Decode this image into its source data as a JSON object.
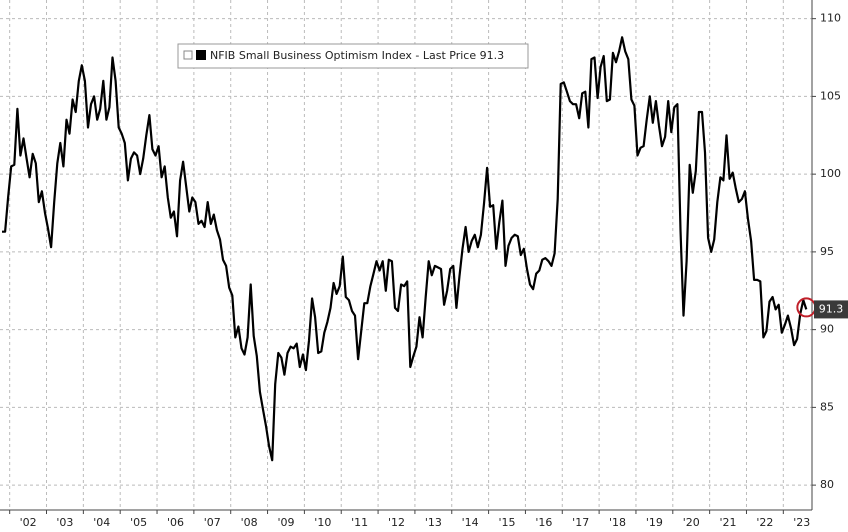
{
  "chart_data": {
    "type": "line",
    "categories": [
      null,
      null,
      null,
      "'02",
      null,
      null,
      null,
      null,
      null,
      null,
      null,
      null,
      null,
      null,
      null,
      "'03",
      null,
      null,
      null,
      null,
      null,
      null,
      null,
      null,
      null,
      null,
      null,
      "'04",
      null,
      null,
      null,
      null,
      null,
      null,
      null,
      null,
      null,
      null,
      null,
      "'05",
      null,
      null,
      null,
      null,
      null,
      null,
      null,
      null,
      null,
      null,
      null,
      "'06",
      null,
      null,
      null,
      null,
      null,
      null,
      null,
      null,
      null,
      null,
      null,
      "'07",
      null,
      null,
      null,
      null,
      null,
      null,
      null,
      null,
      null,
      null,
      null,
      "'08",
      null,
      null,
      null,
      null,
      null,
      null,
      null,
      null,
      null,
      null,
      null,
      "'09",
      null,
      null,
      null,
      null,
      null,
      null,
      null,
      null,
      null,
      null,
      null,
      "'10",
      null,
      null,
      null,
      null,
      null,
      null,
      null,
      null,
      null,
      null,
      null,
      "'11",
      null,
      null,
      null,
      null,
      null,
      null,
      null,
      null,
      null,
      null,
      null,
      "'12",
      null,
      null,
      null,
      null,
      null,
      null,
      null,
      null,
      null,
      null,
      null,
      "'13",
      null,
      null,
      null,
      null,
      null,
      null,
      null,
      null,
      null,
      null,
      null,
      "'14",
      null,
      null,
      null,
      null,
      null,
      null,
      null,
      null,
      null,
      null,
      null,
      "'15",
      null,
      null,
      null,
      null,
      null,
      null,
      null,
      null,
      null,
      null,
      null,
      "'16",
      null,
      null,
      null,
      null,
      null,
      null,
      null,
      null,
      null,
      null,
      null,
      "'17",
      null,
      null,
      null,
      null,
      null,
      null,
      null,
      null,
      null,
      null,
      null,
      "'18",
      null,
      null,
      null,
      null,
      null,
      null,
      null,
      null,
      null,
      null,
      null,
      "'19",
      null,
      null,
      null,
      null,
      null,
      null,
      null,
      null,
      null,
      null,
      null,
      "'20",
      null,
      null,
      null,
      null,
      null,
      null,
      null,
      null,
      null,
      null,
      null,
      "'21",
      null,
      null,
      null,
      null,
      null,
      null,
      null,
      null,
      null,
      null,
      null,
      "'22",
      null,
      null,
      null,
      null,
      null,
      null,
      null,
      null,
      null,
      null,
      null,
      "'23",
      null,
      null,
      null,
      null,
      null,
      null,
      null
    ],
    "series": [
      {
        "name": "NFIB Small Business Optimism Index - Last Price 91.3",
        "color": "#000000",
        "values": [
          96.3,
          96.3,
          98.5,
          100.5,
          100.6,
          104.2,
          101.2,
          102.3,
          101.0,
          99.8,
          101.3,
          100.7,
          98.2,
          98.9,
          97.5,
          96.5,
          95.3,
          98.2,
          100.7,
          102.0,
          100.5,
          103.5,
          102.6,
          104.8,
          104.0,
          106.0,
          107.0,
          106.0,
          103.0,
          104.5,
          105.0,
          103.5,
          104.2,
          106.0,
          103.5,
          104.3,
          107.5,
          106.0,
          103.0,
          102.6,
          102.0,
          99.6,
          101.0,
          101.4,
          101.2,
          100.0,
          101.0,
          102.5,
          103.8,
          101.6,
          101.2,
          101.8,
          99.8,
          100.5,
          98.5,
          97.2,
          97.6,
          96.0,
          99.6,
          100.8,
          99.2,
          97.6,
          98.5,
          98.2,
          96.8,
          97.0,
          96.6,
          98.2,
          96.8,
          97.4,
          96.4,
          95.8,
          94.5,
          94.1,
          92.7,
          92.2,
          89.5,
          90.2,
          88.8,
          88.4,
          89.5,
          92.9,
          89.6,
          88.3,
          86.0,
          84.9,
          83.8,
          82.5,
          81.6,
          86.5,
          88.5,
          88.2,
          87.1,
          88.5,
          88.9,
          88.8,
          89.1,
          87.6,
          88.4,
          87.4,
          89.3,
          92.0,
          90.8,
          88.5,
          88.6,
          89.8,
          90.5,
          91.4,
          93.0,
          92.3,
          92.8,
          94.7,
          92.1,
          91.9,
          91.2,
          90.9,
          88.1,
          89.9,
          91.7,
          91.7,
          92.8,
          93.6,
          94.4,
          93.8,
          94.4,
          92.5,
          94.5,
          94.4,
          91.4,
          91.2,
          92.9,
          92.8,
          93.1,
          87.6,
          88.3,
          88.9,
          90.8,
          89.5,
          92.1,
          94.4,
          93.5,
          94.1,
          94.0,
          93.9,
          91.6,
          92.5,
          93.9,
          94.1,
          91.4,
          93.4,
          95.2,
          96.6,
          95.0,
          95.7,
          96.1,
          95.3,
          96.1,
          98.1,
          100.4,
          97.9,
          98.0,
          95.2,
          96.9,
          98.3,
          94.1,
          95.4,
          95.9,
          96.1,
          96.0,
          94.8,
          95.2,
          93.9,
          92.9,
          92.6,
          93.6,
          93.8,
          94.5,
          94.6,
          94.4,
          94.1,
          94.9,
          98.4,
          105.8,
          105.9,
          105.3,
          104.7,
          104.5,
          104.5,
          103.6,
          105.2,
          105.3,
          103.0,
          107.4,
          107.5,
          104.9,
          106.9,
          107.6,
          104.7,
          104.8,
          107.8,
          107.2,
          107.9,
          108.8,
          107.9,
          107.4,
          104.8,
          104.4,
          101.2,
          101.7,
          101.8,
          103.5,
          105.0,
          103.3,
          104.7,
          103.1,
          101.8,
          102.4,
          104.7,
          102.7,
          104.3,
          104.5,
          96.4,
          90.9,
          94.4,
          100.6,
          98.8,
          100.2,
          104.0,
          104.0,
          101.4,
          95.9,
          95.0,
          95.8,
          98.2,
          99.8,
          99.6,
          102.5,
          99.7,
          100.1,
          99.1,
          98.2,
          98.4,
          98.9,
          97.1,
          95.7,
          93.2,
          93.2,
          93.1,
          89.5,
          89.9,
          91.8,
          92.1,
          91.3,
          91.6,
          89.8,
          90.3,
          90.9,
          90.1,
          89.0,
          89.4,
          91.0,
          91.9,
          91.3
        ]
      }
    ],
    "ylim": [
      78.4,
      111.2
    ],
    "yticks": [
      80,
      85,
      90,
      95,
      100,
      105,
      110
    ],
    "y_axis_side": "right",
    "grid": true,
    "legend": "top-left",
    "highlight_color": "#c0202a"
  }
}
